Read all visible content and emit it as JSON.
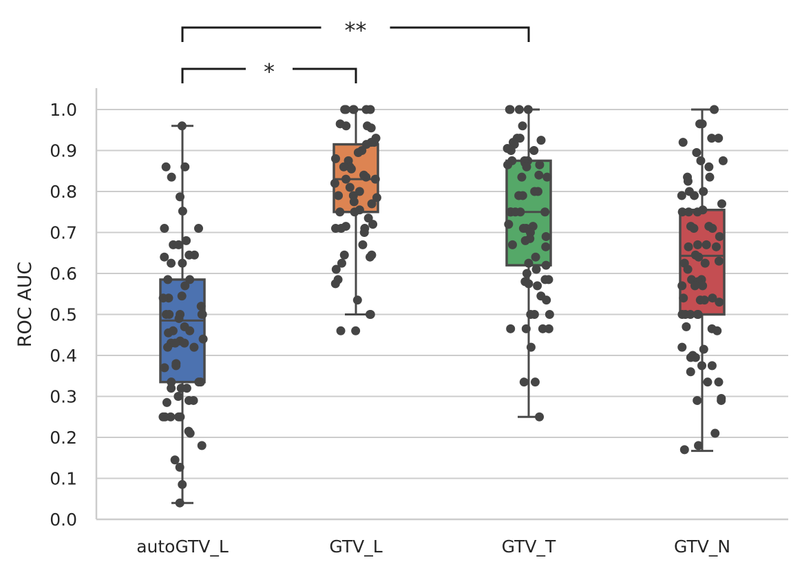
{
  "chart_data": {
    "type": "boxplot",
    "title": "",
    "xlabel": "",
    "ylabel": "ROC AUC",
    "ylim": [
      0.0,
      1.05
    ],
    "yticks": [
      "0.0",
      "0.1",
      "0.2",
      "0.3",
      "0.4",
      "0.5",
      "0.6",
      "0.7",
      "0.8",
      "0.9",
      "1.0"
    ],
    "grid": "horizontal",
    "legend": "none",
    "categories": [
      "autoGTV_L",
      "GTV_L",
      "GTV_T",
      "GTV_N"
    ],
    "colors": [
      "#4c72b0",
      "#dd8452",
      "#55a868",
      "#c44e52"
    ],
    "point_color": "#454545",
    "boxes": [
      {
        "name": "autoGTV_L",
        "whisker_low": 0.04,
        "q1": 0.335,
        "median": 0.485,
        "q3": 0.585,
        "whisker_high": 0.96
      },
      {
        "name": "GTV_L",
        "whisker_low": 0.5,
        "q1": 0.75,
        "median": 0.83,
        "q3": 0.915,
        "whisker_high": 1.0
      },
      {
        "name": "GTV_T",
        "whisker_low": 0.25,
        "q1": 0.62,
        "median": 0.75,
        "q3": 0.875,
        "whisker_high": 1.0
      },
      {
        "name": "GTV_N",
        "whisker_low": 0.167,
        "q1": 0.5,
        "median": 0.643,
        "q3": 0.755,
        "whisker_high": 1.0
      }
    ],
    "points": [
      [
        0.96,
        0.86,
        0.86,
        0.835,
        0.787,
        0.752,
        0.71,
        0.71,
        0.68,
        0.67,
        0.67,
        0.645,
        0.645,
        0.64,
        0.625,
        0.625,
        0.585,
        0.585,
        0.57,
        0.545,
        0.54,
        0.54,
        0.52,
        0.5,
        0.5,
        0.5,
        0.5,
        0.5,
        0.49,
        0.47,
        0.46,
        0.46,
        0.455,
        0.44,
        0.435,
        0.43,
        0.43,
        0.43,
        0.42,
        0.42,
        0.38,
        0.375,
        0.37,
        0.335,
        0.335,
        0.335,
        0.32,
        0.32,
        0.32,
        0.3,
        0.29,
        0.29,
        0.285,
        0.25,
        0.25,
        0.25,
        0.25,
        0.25,
        0.21,
        0.215,
        0.18,
        0.145,
        0.127,
        0.085,
        0.04
      ],
      [
        1.0,
        1.0,
        1.0,
        1.0,
        1.0,
        1.0,
        0.965,
        0.96,
        0.96,
        0.955,
        0.93,
        0.92,
        0.92,
        0.915,
        0.9,
        0.895,
        0.88,
        0.875,
        0.86,
        0.86,
        0.855,
        0.84,
        0.835,
        0.83,
        0.83,
        0.82,
        0.81,
        0.8,
        0.79,
        0.79,
        0.785,
        0.775,
        0.77,
        0.755,
        0.75,
        0.75,
        0.735,
        0.72,
        0.715,
        0.71,
        0.71,
        0.71,
        0.7,
        0.67,
        0.645,
        0.645,
        0.64,
        0.625,
        0.61,
        0.585,
        0.575,
        0.535,
        0.5,
        0.5,
        0.46,
        0.46
      ],
      [
        1.0,
        1.0,
        1.0,
        1.0,
        0.96,
        0.93,
        0.93,
        0.925,
        0.92,
        0.915,
        0.905,
        0.9,
        0.9,
        0.875,
        0.875,
        0.875,
        0.87,
        0.865,
        0.865,
        0.86,
        0.84,
        0.835,
        0.835,
        0.8,
        0.8,
        0.79,
        0.79,
        0.75,
        0.75,
        0.75,
        0.75,
        0.75,
        0.75,
        0.72,
        0.715,
        0.71,
        0.71,
        0.7,
        0.69,
        0.685,
        0.68,
        0.67,
        0.665,
        0.64,
        0.625,
        0.62,
        0.61,
        0.6,
        0.585,
        0.585,
        0.58,
        0.575,
        0.57,
        0.545,
        0.535,
        0.5,
        0.5,
        0.5,
        0.465,
        0.465,
        0.465,
        0.465,
        0.42,
        0.335,
        0.335,
        0.25
      ],
      [
        1.0,
        0.965,
        0.965,
        0.93,
        0.93,
        0.92,
        0.895,
        0.875,
        0.875,
        0.86,
        0.835,
        0.835,
        0.825,
        0.8,
        0.8,
        0.79,
        0.79,
        0.77,
        0.755,
        0.75,
        0.75,
        0.75,
        0.715,
        0.715,
        0.71,
        0.71,
        0.69,
        0.67,
        0.67,
        0.665,
        0.665,
        0.645,
        0.64,
        0.63,
        0.625,
        0.625,
        0.61,
        0.585,
        0.585,
        0.58,
        0.57,
        0.57,
        0.57,
        0.54,
        0.54,
        0.535,
        0.535,
        0.53,
        0.5,
        0.5,
        0.5,
        0.5,
        0.5,
        0.47,
        0.465,
        0.46,
        0.42,
        0.415,
        0.4,
        0.395,
        0.395,
        0.375,
        0.375,
        0.36,
        0.335,
        0.335,
        0.295,
        0.29,
        0.29,
        0.21,
        0.18,
        0.17
      ]
    ],
    "significance": [
      {
        "from": 0,
        "to": 2,
        "label": "**"
      },
      {
        "from": 0,
        "to": 1,
        "label": "*"
      }
    ]
  }
}
